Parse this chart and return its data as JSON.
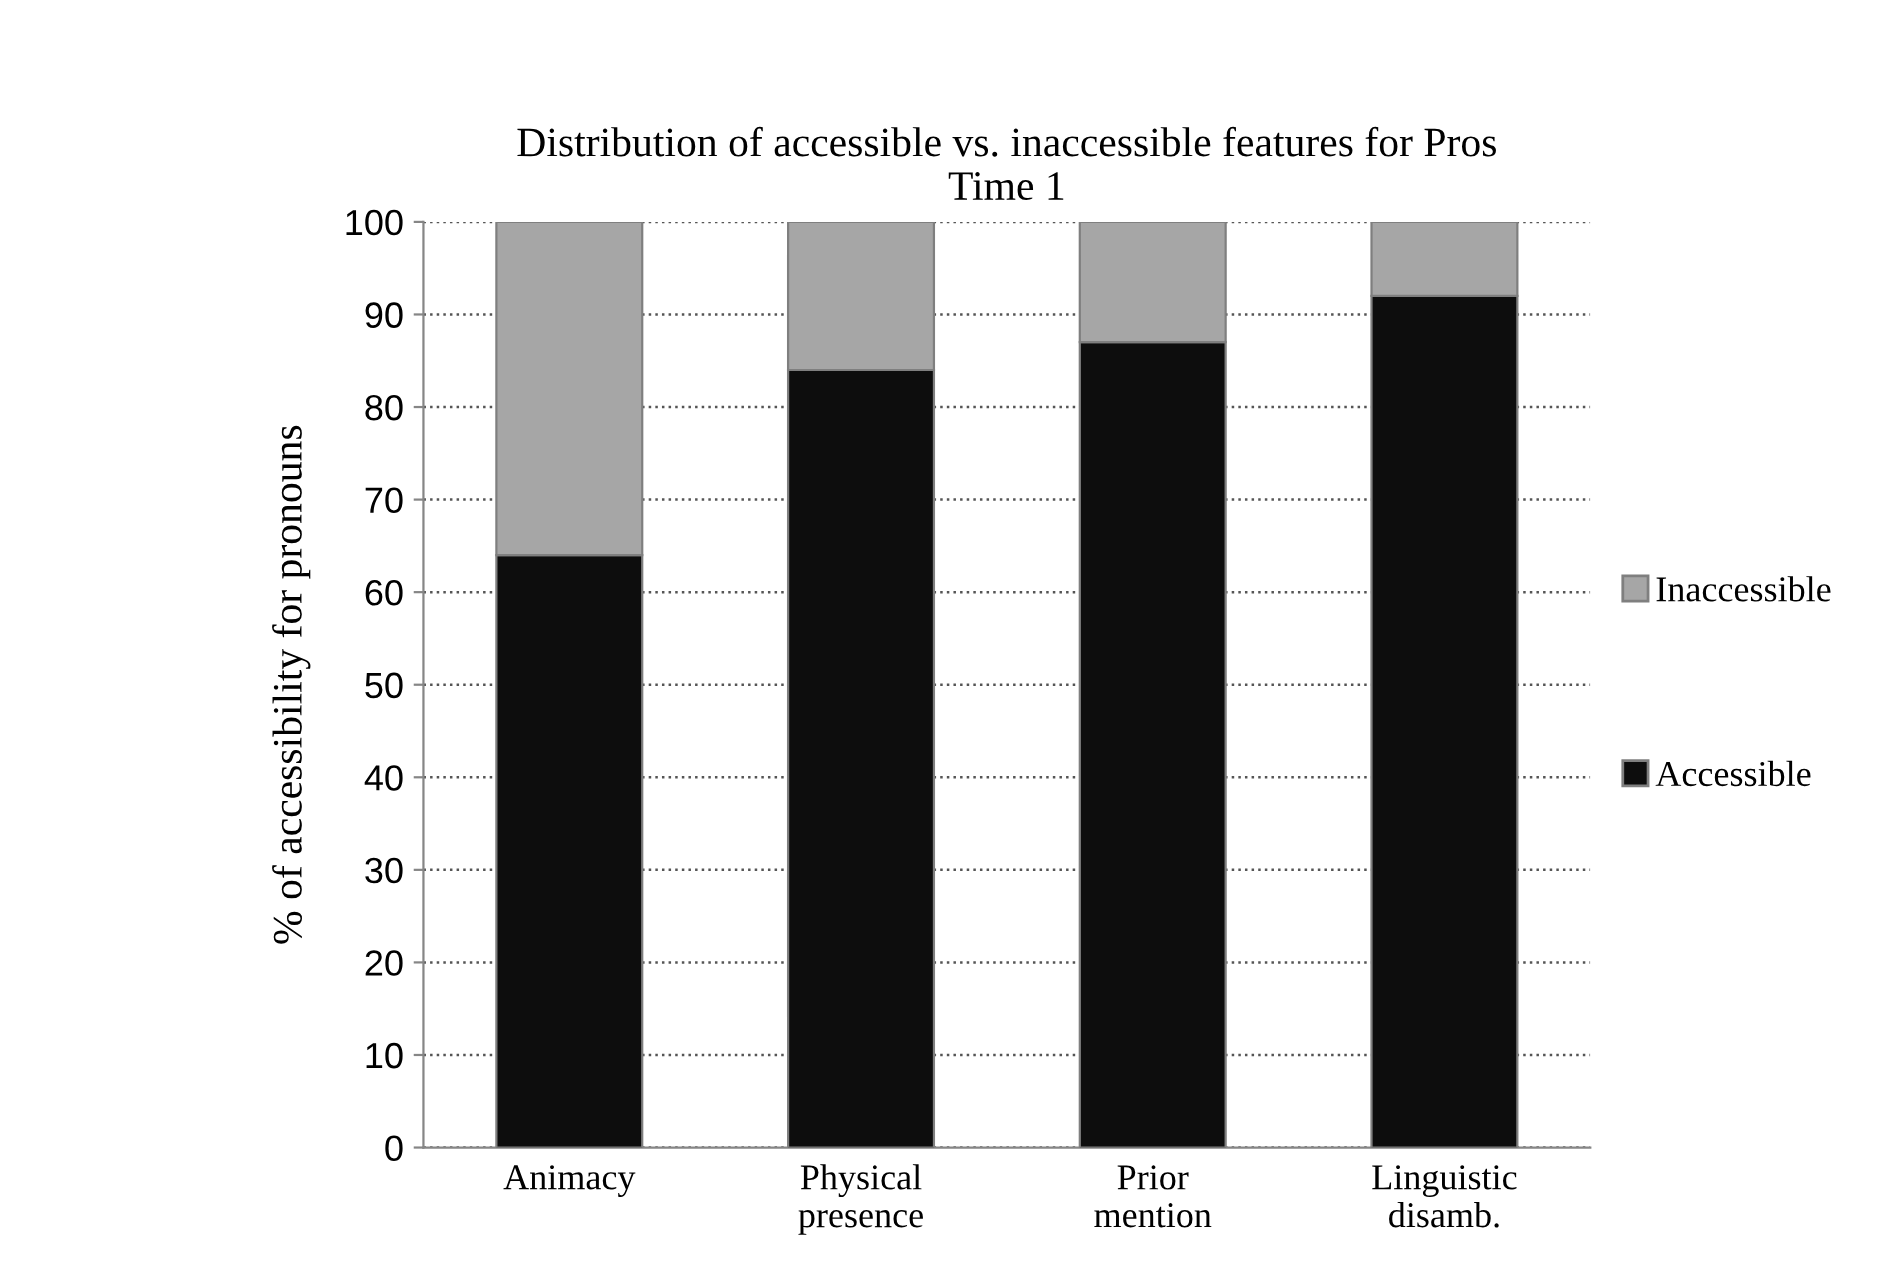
{
  "chart_data": {
    "type": "bar",
    "stacked": true,
    "title": "Distribution of accessible vs. inaccessible features for Pros\nTime 1",
    "ylabel": "% of accessibility for pronouns",
    "categories": [
      "Animacy",
      "Physical\npresence",
      "Prior\nmention",
      "Linguistic\ndisamb."
    ],
    "series": [
      {
        "name": "Accessible",
        "color": "#0d0d0d",
        "values": [
          64,
          84,
          87,
          92
        ]
      },
      {
        "name": "Inaccessible",
        "color": "#a6a6a6",
        "values": [
          36,
          16,
          13,
          8
        ]
      }
    ],
    "ylim": [
      0,
      100
    ],
    "yticks": [
      0,
      10,
      20,
      30,
      40,
      50,
      60,
      70,
      80,
      90,
      100
    ],
    "grid": "y",
    "legend": "right"
  }
}
